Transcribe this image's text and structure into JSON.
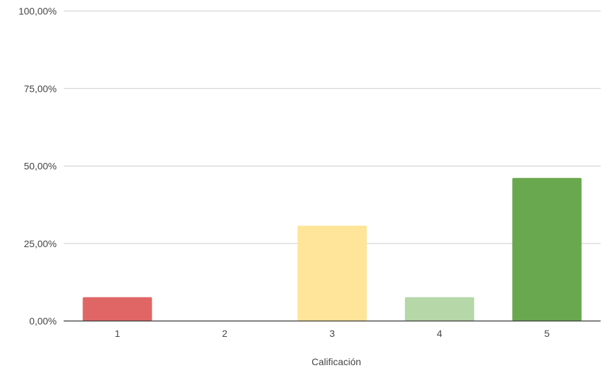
{
  "chart_data": {
    "type": "bar",
    "xlabel": "Calificación",
    "categories": [
      "1",
      "2",
      "3",
      "4",
      "5"
    ],
    "values": [
      7.69,
      0,
      30.77,
      7.69,
      46.15
    ],
    "bar_colors": [
      "#e06666",
      "#ea9999",
      "#ffe599",
      "#b6d7a8",
      "#6aa84f"
    ],
    "ylim": [
      0,
      100
    ],
    "yticks": [
      0,
      25,
      50,
      75,
      100
    ],
    "ytick_labels": [
      "0,00%",
      "25,00%",
      "50,00%",
      "75,00%",
      "100,00%"
    ],
    "grid": true,
    "gridline_color": "#cccccc",
    "baseline_color": "#333333"
  }
}
